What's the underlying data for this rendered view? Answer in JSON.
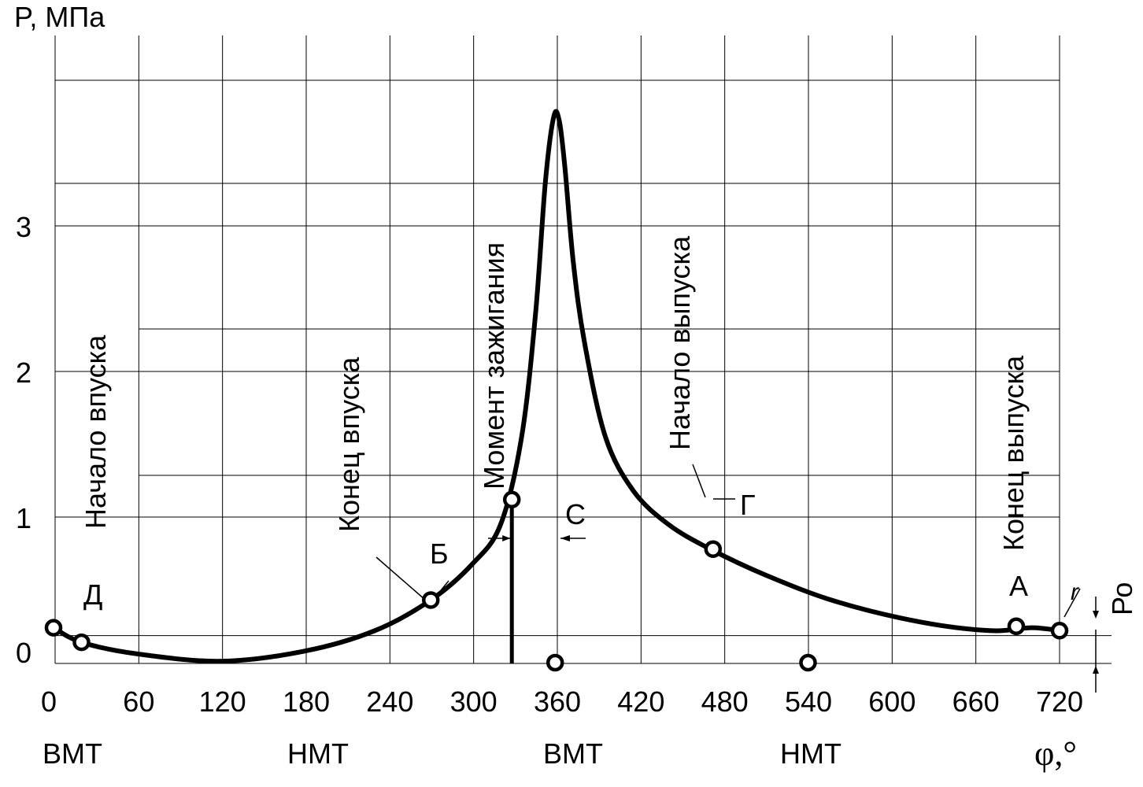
{
  "chart_data": {
    "type": "line",
    "ylabel": "P,  МПа",
    "xlabel": "φ,°",
    "xlim": [
      0,
      720
    ],
    "ylim": [
      -0.05,
      4.4
    ],
    "x_ticks": [
      "0",
      "60",
      "120",
      "180",
      "240",
      "300",
      "360",
      "420",
      "480",
      "540",
      "600",
      "660",
      "720"
    ],
    "y_ticks": [
      {
        "value": 0,
        "label": "0"
      },
      {
        "value": 1,
        "label": "1"
      },
      {
        "value": 2,
        "label": "2"
      },
      {
        "value": 3,
        "label": "3"
      }
    ],
    "dead_centers": [
      {
        "x": 0,
        "label": "ВМТ"
      },
      {
        "x": 180,
        "label": "НМТ"
      },
      {
        "x": 360,
        "label": "ВМТ"
      },
      {
        "x": 540,
        "label": "НМТ"
      }
    ],
    "series": [
      {
        "x": [
          0,
          20,
          60,
          120,
          180,
          230,
          270,
          300,
          320,
          335,
          345,
          352,
          358,
          362,
          366,
          372,
          380,
          395,
          415,
          440,
          470,
          510,
          560,
          620,
          670,
          700,
          720
        ],
        "y": [
          0.24,
          0.14,
          0.06,
          0.01,
          0.08,
          0.22,
          0.43,
          0.68,
          0.95,
          1.55,
          2.4,
          3.3,
          3.75,
          3.72,
          3.4,
          2.75,
          2.2,
          1.55,
          1.18,
          0.95,
          0.78,
          0.6,
          0.42,
          0.28,
          0.22,
          0.24,
          0.22
        ]
      }
    ],
    "points": [
      {
        "x": 0,
        "y": 0.24
      },
      {
        "x": 20,
        "y": 0.14
      },
      {
        "x": 270,
        "y": 0.43
      },
      {
        "x": 328,
        "y": 1.12
      },
      {
        "x": 359,
        "y": -0.05
      },
      {
        "x": 540,
        "y": -0.05
      },
      {
        "x": 472,
        "y": 0.78
      },
      {
        "x": 689,
        "y": 0.25
      },
      {
        "x": 720,
        "y": 0.22
      }
    ],
    "ignition_line_x": 328,
    "p0": 0.24,
    "point_labels": [
      {
        "text": "Д"
      },
      {
        "text": "Б"
      },
      {
        "text": "С"
      },
      {
        "text": "Г"
      },
      {
        "text": "А"
      },
      {
        "text": "r"
      },
      {
        "text": "Ро"
      }
    ],
    "annotations": [
      {
        "text": "Начало впуска"
      },
      {
        "text": "Конец впуска"
      },
      {
        "text": "Момент зажигания"
      },
      {
        "text": "Начало выпуска"
      },
      {
        "text": "Конец выпуска"
      }
    ]
  }
}
